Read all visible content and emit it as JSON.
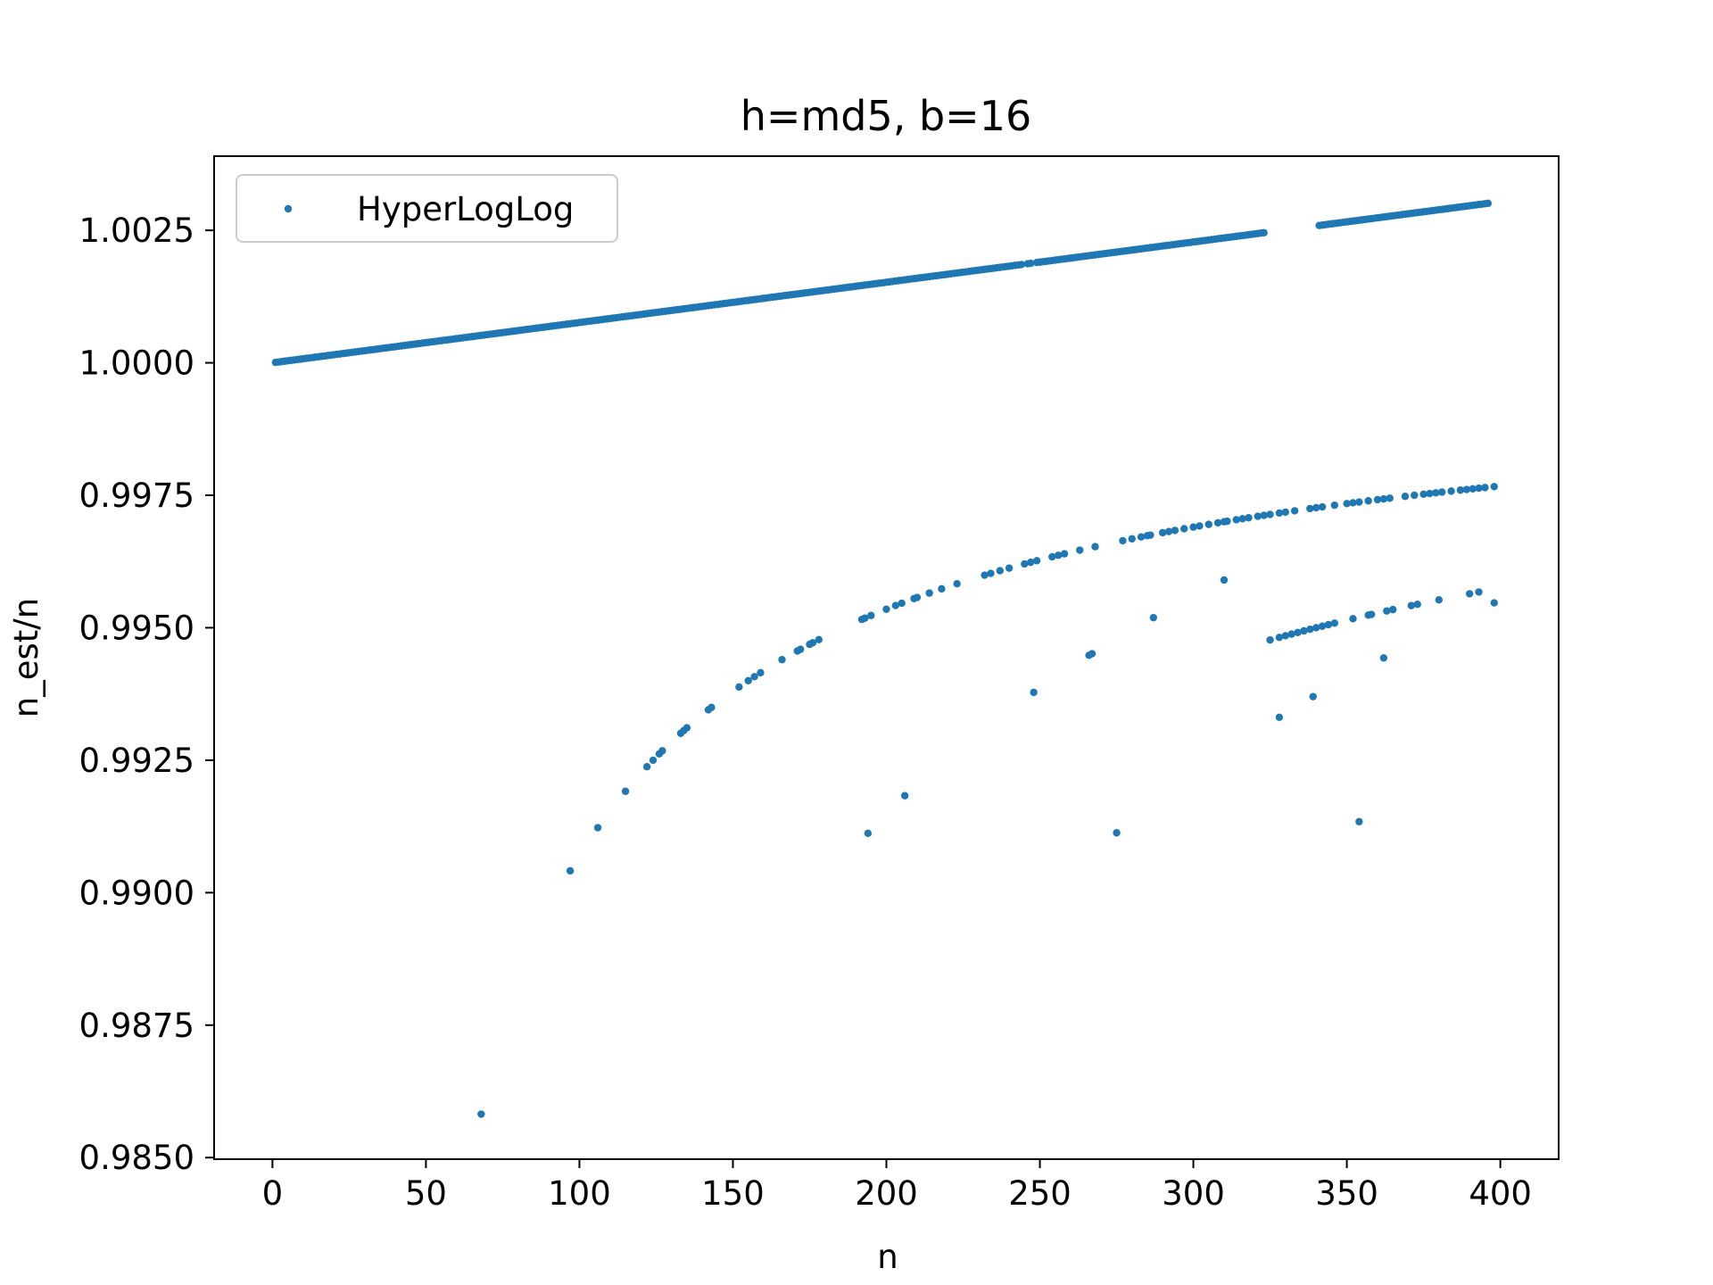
{
  "chart_data": {
    "type": "scatter",
    "title": "h=md5, b=16",
    "xlabel": "n",
    "ylabel": "n_est/n",
    "xlim": [
      -19,
      419
    ],
    "ylim": [
      0.98497,
      1.0039
    ],
    "xticks": [
      0,
      50,
      100,
      150,
      200,
      250,
      300,
      350,
      400
    ],
    "xtick_labels": [
      "0",
      "50",
      "100",
      "150",
      "200",
      "250",
      "300",
      "350",
      "400"
    ],
    "yticks": [
      0.985,
      0.9875,
      0.99,
      0.9925,
      0.995,
      0.9975,
      1.0,
      1.0025
    ],
    "ytick_labels": [
      "0.9850",
      "0.9875",
      "0.9900",
      "0.9925",
      "0.9950",
      "0.9975",
      "1.0000",
      "1.0025"
    ],
    "grid": false,
    "legend_position": "upper-left",
    "color": "#1f77b4",
    "series": [
      {
        "name": "HyperLogLog",
        "trend_lines": [
          {
            "x_start": 1,
            "x_end": 396,
            "slope_per_n": 7.6e-06,
            "intercept": 1.0,
            "skip": [
              245,
              248,
              324,
              325,
              326,
              327,
              328,
              329,
              330,
              331,
              332,
              333,
              334,
              335,
              336,
              337,
              338,
              339,
              340
            ]
          },
          {
            "x_start": 97,
            "x_end": 398,
            "formula": "1 - 0.93/n",
            "every": [
              97,
              106,
              115,
              122,
              124,
              126,
              127,
              133,
              134,
              135,
              142,
              143,
              152,
              155,
              157,
              159,
              166,
              171,
              172,
              175,
              176,
              178,
              192,
              193,
              195,
              200,
              203,
              205,
              209,
              210,
              214,
              218,
              223,
              232,
              234,
              237,
              240,
              245,
              247,
              249,
              254,
              256,
              258,
              263,
              268,
              277,
              280,
              283,
              285,
              286,
              290,
              292,
              294,
              297,
              300,
              302,
              305,
              308,
              310,
              311,
              314,
              316,
              318,
              321,
              323,
              325,
              328,
              330,
              333,
              338,
              340,
              342,
              346,
              350,
              352,
              354,
              357,
              360,
              362,
              364,
              369,
              372,
              375,
              377,
              379,
              381,
              384,
              387,
              389,
              391,
              393,
              395,
              398
            ]
          },
          {
            "x_start": 325,
            "x_end": 398,
            "formula": "1 - 1.7/n",
            "every": [
              325,
              328,
              330,
              332,
              334,
              336,
              338,
              340,
              342,
              344,
              346,
              352,
              357,
              358,
              363,
              365,
              371,
              373,
              380,
              390,
              393
            ]
          }
        ],
        "outliers": [
          [
            68,
            0.98582
          ],
          [
            194,
            0.99112
          ],
          [
            206,
            0.99183
          ],
          [
            248,
            0.99378
          ],
          [
            266,
            0.99448
          ],
          [
            267,
            0.99451
          ],
          [
            275,
            0.99113
          ],
          [
            287,
            0.99519
          ],
          [
            310,
            0.9959
          ],
          [
            328,
            0.99331
          ],
          [
            339,
            0.9937
          ],
          [
            354,
            0.99134
          ],
          [
            362,
            0.99443
          ],
          [
            398,
            0.99547
          ]
        ]
      }
    ]
  }
}
